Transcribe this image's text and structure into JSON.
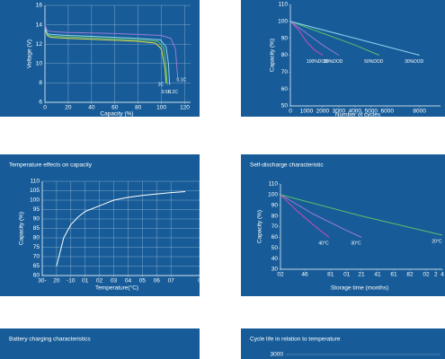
{
  "chart_data": [
    {
      "type": "line",
      "ylabel": "Voltage (V)",
      "xlabel": "Capacity (%)",
      "xlim": [
        0,
        125
      ],
      "ylim": [
        6,
        16
      ],
      "xticks": [
        0,
        20,
        40,
        60,
        80,
        100,
        120
      ],
      "yticks": [
        6,
        8,
        10,
        12,
        14,
        16
      ],
      "grid": true,
      "series": [
        {
          "name": "1C",
          "color": "#e8e04a",
          "x": [
            0,
            2,
            5,
            20,
            40,
            60,
            80,
            95,
            100,
            103,
            104
          ],
          "values": [
            13.6,
            12.9,
            12.7,
            12.6,
            12.5,
            12.4,
            12.3,
            12.1,
            11.5,
            9.5,
            8
          ]
        },
        {
          "name": "0.5C",
          "color": "#5cc06a",
          "x": [
            0,
            2,
            5,
            20,
            40,
            60,
            80,
            97,
            102,
            104,
            105
          ],
          "values": [
            13.7,
            13.0,
            12.85,
            12.75,
            12.65,
            12.55,
            12.45,
            12.3,
            11.6,
            9.8,
            7.8
          ]
        },
        {
          "name": "0.2C",
          "color": "#8fd3f0",
          "x": [
            0,
            2,
            5,
            20,
            40,
            60,
            80,
            99,
            104,
            106,
            107
          ],
          "values": [
            13.8,
            13.1,
            13.0,
            12.9,
            12.8,
            12.7,
            12.6,
            12.45,
            11.7,
            10,
            7.8
          ]
        },
        {
          "name": "0.1C",
          "color": "#9a7ad8",
          "x": [
            0,
            2,
            5,
            20,
            40,
            60,
            80,
            100,
            108,
            112,
            114
          ],
          "values": [
            14.0,
            13.4,
            13.3,
            13.2,
            13.15,
            13.1,
            13.0,
            12.9,
            12.6,
            11.5,
            8.5
          ]
        }
      ]
    },
    {
      "type": "line",
      "ylabel": "Capacity (%)",
      "xlabel": "Number of cycles",
      "xlim": [
        0,
        9300
      ],
      "ylim": [
        50,
        110
      ],
      "xticks": [
        0,
        1000,
        2000,
        3000,
        4000,
        5000,
        6000,
        8000
      ],
      "yticks": [
        50,
        60,
        70,
        80,
        90,
        100,
        110
      ],
      "grid": false,
      "series": [
        {
          "name": "100%DOD",
          "color": "#d04ab8",
          "x": [
            0,
            500,
            1000,
            1500,
            2000
          ],
          "values": [
            100,
            95,
            88,
            83,
            80
          ]
        },
        {
          "name": "80%DOD",
          "color": "#9a7ad8",
          "x": [
            0,
            1000,
            2000,
            3000
          ],
          "values": [
            100,
            93,
            86,
            80
          ]
        },
        {
          "name": "50%DOD",
          "color": "#5cc06a",
          "x": [
            0,
            2000,
            4000,
            5500
          ],
          "values": [
            100,
            93,
            86,
            80
          ]
        },
        {
          "name": "30%DOD",
          "color": "#8fd3f0",
          "x": [
            0,
            4000,
            8000
          ],
          "values": [
            100,
            90,
            80
          ]
        }
      ]
    },
    {
      "type": "line",
      "title": "Temperature effects on capacity",
      "ylabel": "Capacity (%)",
      "xlabel": "Temperature(°C)",
      "xlim": [
        -30,
        80
      ],
      "ylim": [
        60,
        110
      ],
      "xticks": [
        {
          "value": -30,
          "label": "30-"
        },
        {
          "value": -20,
          "label": "20"
        },
        -10,
        {
          "value": 0,
          "label": "01"
        },
        {
          "value": 10,
          "label": "02"
        },
        {
          "value": 20,
          "label": "03"
        },
        {
          "value": 30,
          "label": "04"
        },
        {
          "value": 40,
          "label": "05"
        },
        {
          "value": 50,
          "label": "06"
        },
        {
          "value": 60,
          "label": "07"
        },
        {
          "value": 80,
          "label": "0"
        }
      ],
      "yticks": [
        60,
        65,
        70,
        75,
        80,
        85,
        90,
        95,
        100,
        105,
        110
      ],
      "grid": true,
      "series": [
        {
          "color": "#ffffff",
          "x": [
            -20,
            -15,
            -10,
            -5,
            0,
            10,
            20,
            30,
            40,
            50,
            60,
            70
          ],
          "values": [
            65,
            80,
            87,
            91,
            94,
            97,
            100,
            101.5,
            102.5,
            103.3,
            104,
            104.5
          ]
        }
      ]
    },
    {
      "type": "line",
      "title": "Self-discharge characteristic",
      "ylabel": "Capacity (%)",
      "xlabel": "Storage time (months)",
      "xlim": [
        0,
        10
      ],
      "ylim": [
        30,
        110
      ],
      "xticks": [
        {
          "value": 0,
          "label": "02"
        },
        {
          "value": 1.5,
          "label": "46"
        },
        {
          "value": 3.1,
          "label": "81"
        },
        {
          "value": 4.1,
          "label": "01"
        },
        {
          "value": 5,
          "label": "21"
        },
        {
          "value": 6,
          "label": "41"
        },
        {
          "value": 7,
          "label": "61"
        },
        {
          "value": 8,
          "label": "82"
        },
        {
          "value": 9,
          "label": "02"
        },
        {
          "value": 9.6,
          "label": "2"
        },
        {
          "value": 10,
          "label": "4"
        }
      ],
      "yticks": [
        30,
        40,
        50,
        60,
        70,
        80,
        90,
        100,
        110
      ],
      "grid": false,
      "series": [
        {
          "name": "40°C",
          "color": "#d04ab8",
          "x": [
            0,
            1,
            2,
            3
          ],
          "values": [
            100,
            85,
            72,
            60
          ]
        },
        {
          "name": "30°C",
          "color": "#9a7ad8",
          "x": [
            0,
            2,
            4,
            5
          ],
          "values": [
            100,
            82,
            67,
            60
          ]
        },
        {
          "name": "20°C",
          "color": "#5cc06a",
          "x": [
            0,
            5,
            10
          ],
          "values": [
            100,
            80,
            62
          ]
        }
      ]
    },
    {
      "type": "line",
      "title": "Battery charging characteristics"
    },
    {
      "type": "line",
      "title": "Cycle life in relation to temperature",
      "yticks": [
        3000
      ],
      "grid": true
    }
  ]
}
